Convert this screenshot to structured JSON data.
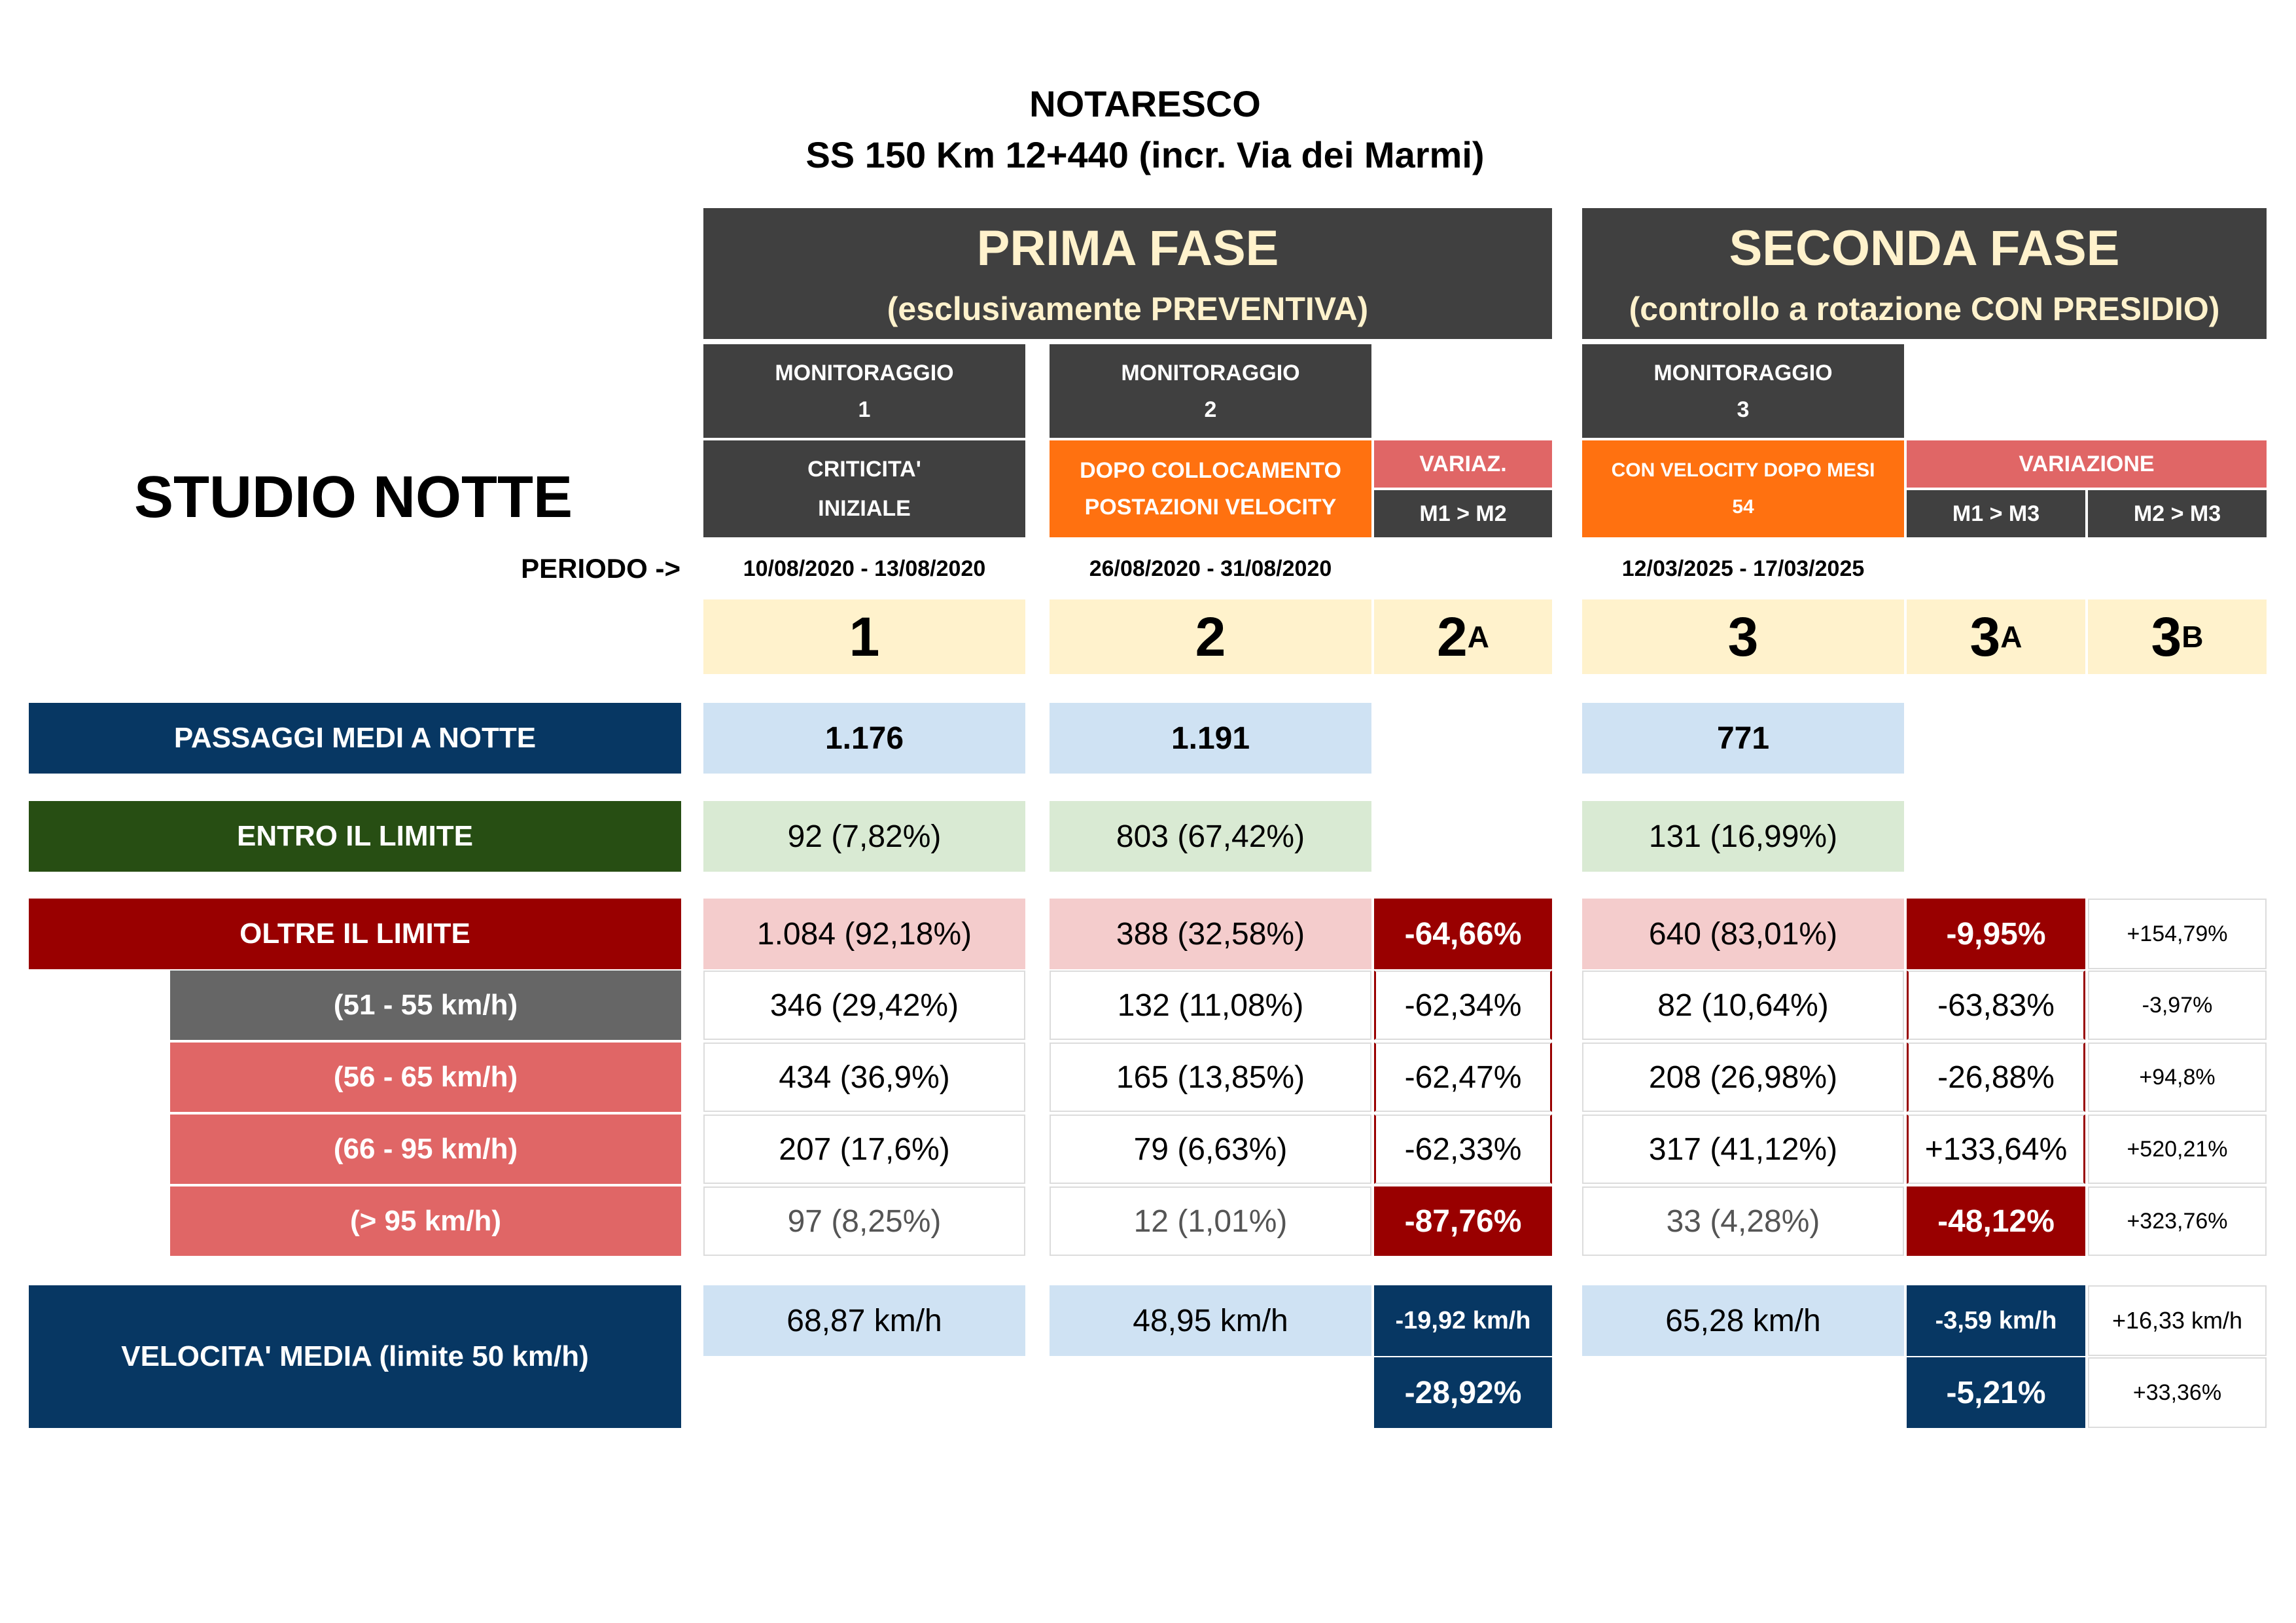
{
  "header": {
    "line1": "NOTARESCO",
    "line2": "SS 150 Km 12+440 (incr. Via dei Marmi)"
  },
  "study_title": "STUDIO NOTTE",
  "period_label": "PERIODO ->",
  "phases": {
    "first": {
      "title": "PRIMA FASE",
      "subtitle": "(esclusivamente PREVENTIVA)"
    },
    "second": {
      "title": "SECONDA FASE",
      "subtitle": "(controllo a rotazione CON PRESIDIO)"
    }
  },
  "monitors": {
    "m1": {
      "title": "MONITORAGGIO",
      "num": "1",
      "desc1": "CRITICITA'",
      "desc2": "INIZIALE",
      "period": "10/08/2020 - 13/08/2020"
    },
    "m2": {
      "title": "MONITORAGGIO",
      "num": "2",
      "desc1": "DOPO COLLOCAMENTO",
      "desc2": "POSTAZIONI VELOCITY",
      "period": "26/08/2020 - 31/08/2020"
    },
    "m3": {
      "title": "MONITORAGGIO",
      "num": "3",
      "desc1": "CON VELOCITY DOPO MESI",
      "desc2": "54",
      "period": "12/03/2025 - 17/03/2025"
    }
  },
  "variations": {
    "v2a": {
      "title": "VARIAZ.",
      "sub": "M1 > M2"
    },
    "v3": {
      "title": "VARIAZIONE",
      "sub_a": "M1 > M3",
      "sub_b": "M2 > M3"
    }
  },
  "col_ids": {
    "c1": "1",
    "c2": "2",
    "c2a_main": "2",
    "c2a_sub": "A",
    "c3": "3",
    "c3a_main": "3",
    "c3a_sub": "A",
    "c3b_main": "3",
    "c3b_sub": "B"
  },
  "rows": {
    "passaggi": {
      "label": "PASSAGGI MEDI A NOTTE",
      "m1": "1.176",
      "m2": "1.191",
      "m3": "771"
    },
    "entro": {
      "label": "ENTRO IL LIMITE",
      "m1": "92 (7,82%)",
      "m2": "803 (67,42%)",
      "m3": "131 (16,99%)"
    },
    "oltre": {
      "label": "OLTRE IL LIMITE",
      "m1": "1.084 (92,18%)",
      "m2": "388 (32,58%)",
      "v2a": "-64,66%",
      "m3": "640 (83,01%)",
      "v3a": "-9,95%",
      "v3b": "+154,79%"
    },
    "r51": {
      "label": "(51 - 55 km/h)",
      "m1": "346 (29,42%)",
      "m2": "132 (11,08%)",
      "v2a": "-62,34%",
      "m3": "82 (10,64%)",
      "v3a": "-63,83%",
      "v3b": "-3,97%"
    },
    "r56": {
      "label": "(56 - 65 km/h)",
      "m1": "434 (36,9%)",
      "m2": "165 (13,85%)",
      "v2a": "-62,47%",
      "m3": "208 (26,98%)",
      "v3a": "-26,88%",
      "v3b": "+94,8%"
    },
    "r66": {
      "label": "(66 - 95 km/h)",
      "m1": "207 (17,6%)",
      "m2": "79 (6,63%)",
      "v2a": "-62,33%",
      "m3": "317 (41,12%)",
      "v3a": "+133,64%",
      "v3b": "+520,21%"
    },
    "r95": {
      "label": "(> 95 km/h)",
      "m1": "97 (8,25%)",
      "m2": "12 (1,01%)",
      "v2a": "-87,76%",
      "m3": "33 (4,28%)",
      "v3a": "-48,12%",
      "v3b": "+323,76%"
    },
    "velocita": {
      "label": "VELOCITA' MEDIA (limite 50 km/h)",
      "m1": "68,87 km/h",
      "m2": "48,95 km/h",
      "v2a_kmh": "-19,92 km/h",
      "v2a_pct": "-28,92%",
      "m3": "65,28 km/h",
      "v3a_kmh": "-3,59 km/h",
      "v3a_pct": "-5,21%",
      "v3b_kmh": "+16,33 km/h",
      "v3b_pct": "+33,36%"
    }
  },
  "colors": {
    "navy": "#073763",
    "green": "#274e13",
    "maroon": "#990000",
    "orange": "#ff7110",
    "salmon": "#e06666",
    "dark_gray": "#404040",
    "cream": "#fff2cc",
    "light_blue": "#cfe2f3",
    "light_green": "#d9ead3",
    "light_red": "#f4cccc"
  }
}
